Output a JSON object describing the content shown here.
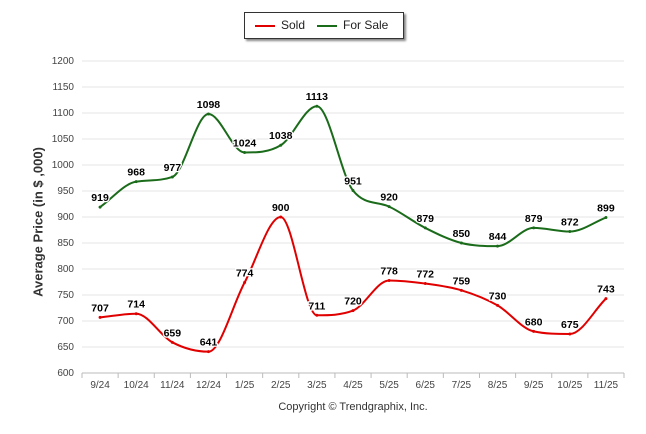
{
  "chart_data": {
    "type": "line",
    "categories": [
      "9/24",
      "10/24",
      "11/24",
      "12/24",
      "1/25",
      "2/25",
      "3/25",
      "4/25",
      "5/25",
      "6/25",
      "7/25",
      "8/25",
      "9/25",
      "10/25",
      "11/25"
    ],
    "series": [
      {
        "name": "Sold",
        "color": "#e00000",
        "values": [
          707,
          714,
          659,
          641,
          774,
          900,
          711,
          720,
          778,
          772,
          759,
          730,
          680,
          675,
          743
        ]
      },
      {
        "name": "For Sale",
        "color": "#1a6b1a",
        "values": [
          919,
          968,
          977,
          1098,
          1024,
          1038,
          1113,
          951,
          920,
          879,
          850,
          844,
          879,
          872,
          899
        ]
      }
    ],
    "ylabel": "Average Price (in $ ,000)",
    "ylim": [
      600,
      1200
    ],
    "yticks": [
      600,
      650,
      700,
      750,
      800,
      850,
      900,
      950,
      1000,
      1050,
      1100,
      1150,
      1200
    ],
    "grid": true,
    "legend": "top-center",
    "footer": "Copyright © Trendgraphix, Inc."
  }
}
